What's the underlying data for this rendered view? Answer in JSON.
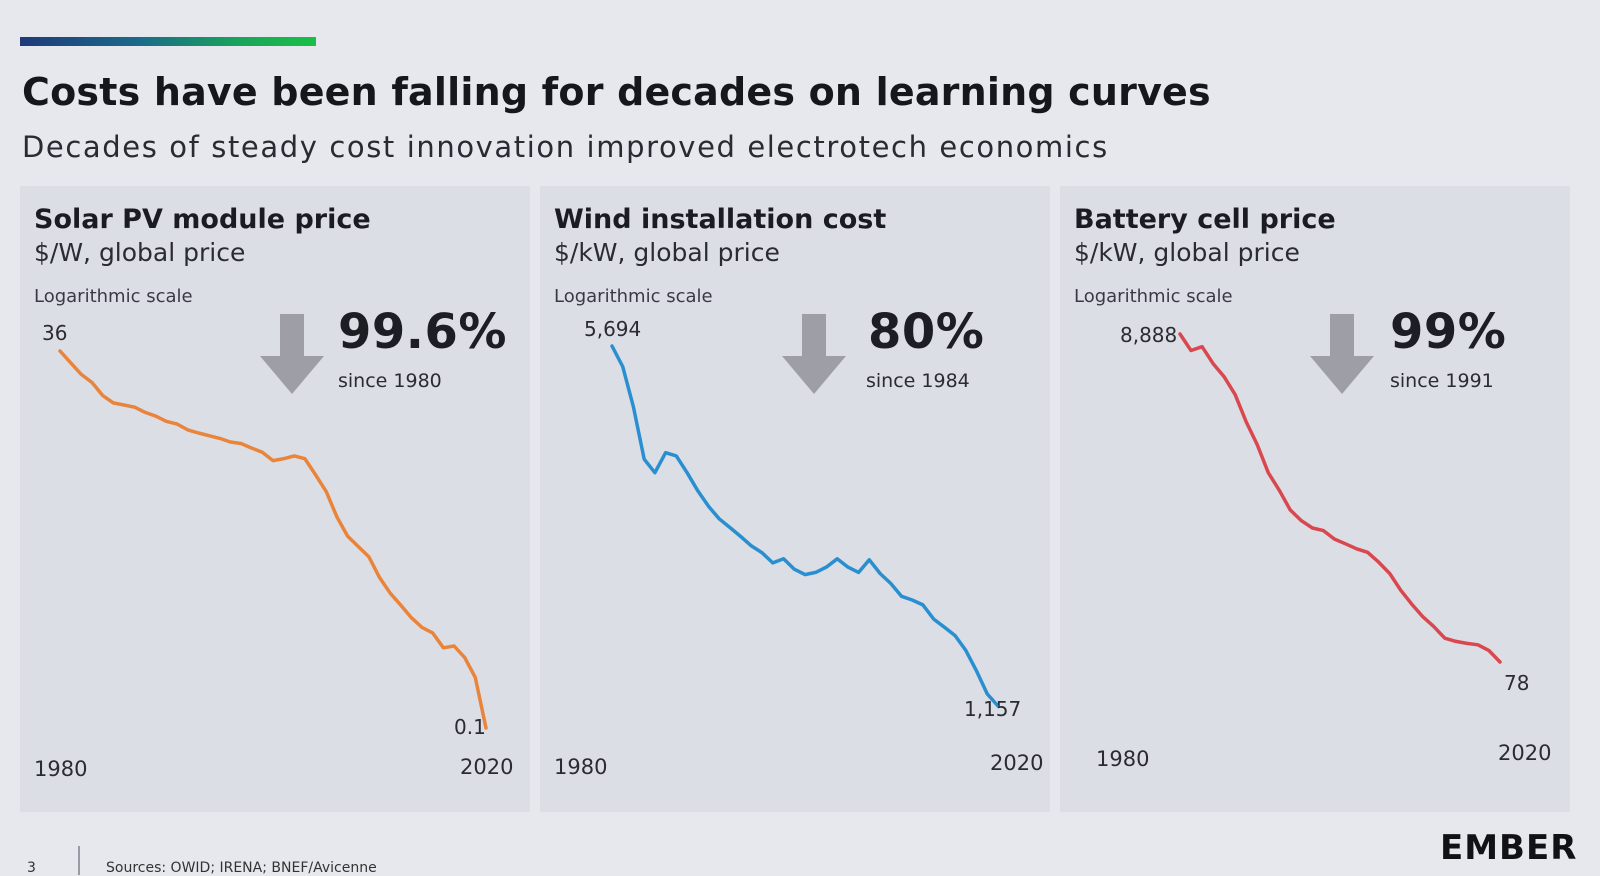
{
  "slide": {
    "title": "Costs have been falling for decades on learning curves",
    "subtitle": "Decades of steady cost innovation improved electrotech economics",
    "page_number": "3",
    "sources": "Sources: OWID; IRENA; BNEF/Avicenne",
    "logo": "EMBER"
  },
  "colors": {
    "accent_start": "#1f3a7a",
    "accent_end": "#19c046",
    "solar": "#e9843b",
    "wind": "#2a8fd0",
    "battery": "#d8484e",
    "arrow": "#9e9fa6"
  },
  "chart_data": [
    {
      "type": "line",
      "title": "Solar PV module price",
      "unit": "$/W, global price",
      "scale_note": "Logarithmic scale",
      "yscale": "log",
      "ylim": [
        0.1,
        36
      ],
      "start_label": "36",
      "end_label": "0.1",
      "x_start_label": "1980",
      "x_end_label": "2020",
      "decline_pct": "99.6%",
      "decline_since": "since 1980",
      "color_key": "solar",
      "series": [
        {
          "name": "Solar PV module price",
          "x": [
            1980,
            1981,
            1982,
            1983,
            1984,
            1985,
            1986,
            1987,
            1988,
            1989,
            1990,
            1991,
            1992,
            1993,
            1994,
            1995,
            1996,
            1997,
            1998,
            1999,
            2000,
            2001,
            2002,
            2003,
            2004,
            2005,
            2006,
            2007,
            2008,
            2009,
            2010,
            2011,
            2012,
            2013,
            2014,
            2015,
            2016,
            2017,
            2018,
            2019,
            2020
          ],
          "y": [
            36,
            30,
            25,
            22,
            18,
            16,
            15.5,
            15,
            13.8,
            13,
            12,
            11.5,
            10.5,
            10,
            9.6,
            9.2,
            8.7,
            8.5,
            7.9,
            7.4,
            6.5,
            6.7,
            7,
            6.7,
            5.2,
            4,
            2.7,
            2.0,
            1.7,
            1.45,
            1.05,
            0.82,
            0.68,
            0.56,
            0.48,
            0.44,
            0.35,
            0.36,
            0.3,
            0.22,
            0.1
          ]
        }
      ]
    },
    {
      "type": "line",
      "title": "Wind installation cost",
      "unit": "$/kW, global price",
      "scale_note": "Logarithmic scale",
      "yscale": "log",
      "ylim": [
        1157,
        5694
      ],
      "start_label": "5,694",
      "end_label": "1,157",
      "x_start_label": "1980",
      "x_end_label": "2020",
      "decline_pct": "80%",
      "decline_since": "since 1984",
      "color_key": "wind",
      "series": [
        {
          "name": "Wind installation cost",
          "x": [
            1984,
            1985,
            1986,
            1987,
            1988,
            1989,
            1990,
            1991,
            1992,
            1993,
            1994,
            1995,
            1996,
            1997,
            1998,
            1999,
            2000,
            2001,
            2002,
            2003,
            2004,
            2005,
            2006,
            2007,
            2008,
            2009,
            2010,
            2011,
            2012,
            2013,
            2014,
            2015,
            2016,
            2017,
            2018,
            2019,
            2020
          ],
          "y": [
            5694,
            5200,
            4350,
            3450,
            3250,
            3550,
            3500,
            3250,
            3000,
            2800,
            2650,
            2550,
            2450,
            2350,
            2280,
            2180,
            2220,
            2120,
            2070,
            2090,
            2140,
            2220,
            2140,
            2090,
            2210,
            2080,
            1990,
            1880,
            1850,
            1810,
            1700,
            1640,
            1580,
            1480,
            1350,
            1220,
            1157
          ]
        }
      ]
    },
    {
      "type": "line",
      "title": "Battery cell price",
      "unit": "$/kW, global price",
      "scale_note": "Logarithmic scale",
      "yscale": "log",
      "ylim": [
        78,
        8888
      ],
      "start_label": "8,888",
      "end_label": "78",
      "x_start_label": "1980",
      "x_end_label": "2020",
      "decline_pct": "99%",
      "decline_since": "since 1991",
      "color_key": "battery",
      "series": [
        {
          "name": "Battery cell price",
          "x": [
            1991,
            1992,
            1993,
            1994,
            1995,
            1996,
            1997,
            1998,
            1999,
            2000,
            2001,
            2002,
            2003,
            2004,
            2005,
            2006,
            2007,
            2008,
            2009,
            2010,
            2011,
            2012,
            2013,
            2014,
            2015,
            2016,
            2017,
            2018,
            2019,
            2020
          ],
          "y": [
            8888,
            7000,
            7400,
            5800,
            4800,
            3700,
            2500,
            1800,
            1200,
            930,
            700,
            600,
            540,
            520,
            460,
            430,
            400,
            380,
            330,
            280,
            220,
            180,
            150,
            130,
            110,
            105,
            102,
            100,
            92,
            78
          ]
        }
      ]
    }
  ]
}
